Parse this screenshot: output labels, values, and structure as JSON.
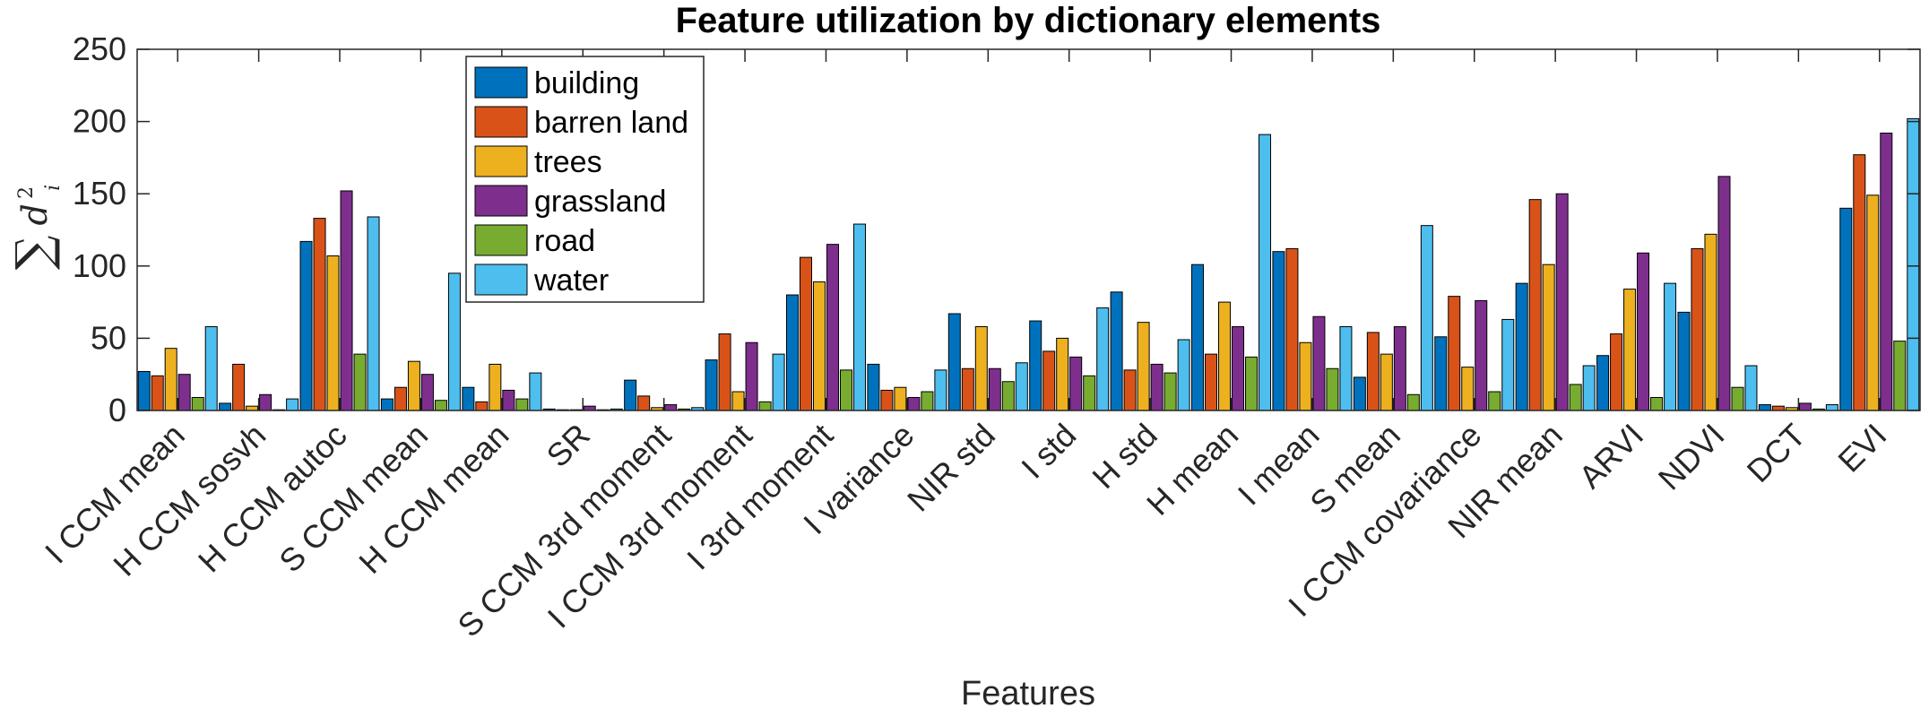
{
  "chart_data": {
    "type": "bar",
    "title": "Feature utilization by dictionary elements",
    "xlabel": "Features",
    "ylabel": {
      "sum_symbol": "∑",
      "variable": "d",
      "exponent": "2",
      "subscript": "i"
    },
    "ylim": [
      0,
      250
    ],
    "yticks": [
      0,
      50,
      100,
      150,
      200,
      250
    ],
    "grid": false,
    "legend_position": "top-left",
    "categories": [
      "I CCM mean",
      "H CCM sosvh",
      "H CCM autoc",
      "S CCM mean",
      "H CCM mean",
      "SR",
      "S CCM 3rd moment",
      "I CCM 3rd moment",
      "I 3rd moment",
      "I variance",
      "NIR std",
      "I std",
      "H std",
      "H mean",
      "I mean",
      "S mean",
      "I CCM covariance",
      "NIR mean",
      "ARVI",
      "NDVI",
      "DCT",
      "EVI"
    ],
    "series": [
      {
        "name": "building",
        "color": "#0072BD",
        "values": [
          27,
          5,
          117,
          8,
          16,
          1,
          21,
          35,
          80,
          32,
          67,
          62,
          82,
          101,
          110,
          23,
          51,
          88,
          38,
          68,
          4,
          140
        ]
      },
      {
        "name": "barren land",
        "color": "#D95319",
        "values": [
          24,
          32,
          133,
          16,
          6,
          0.5,
          10,
          53,
          106,
          14,
          29,
          41,
          28,
          39,
          112,
          54,
          79,
          146,
          53,
          112,
          3,
          177
        ]
      },
      {
        "name": "trees",
        "color": "#EDB120",
        "values": [
          43,
          3,
          107,
          34,
          32,
          0.5,
          2,
          13,
          89,
          16,
          58,
          50,
          61,
          75,
          47,
          39,
          30,
          101,
          84,
          122,
          2,
          149
        ]
      },
      {
        "name": "grassland",
        "color": "#7E2F8E",
        "values": [
          25,
          11,
          152,
          25,
          14,
          3,
          4,
          47,
          115,
          9,
          29,
          37,
          32,
          58,
          65,
          58,
          76,
          150,
          109,
          162,
          5,
          192
        ]
      },
      {
        "name": "road",
        "color": "#77AC30",
        "values": [
          9,
          0.5,
          39,
          7,
          8,
          0.5,
          1,
          6,
          28,
          13,
          20,
          24,
          26,
          37,
          29,
          11,
          13,
          18,
          9,
          16,
          1,
          48
        ]
      },
      {
        "name": "water",
        "color": "#4DBEEE",
        "values": [
          58,
          8,
          134,
          95,
          26,
          1,
          2,
          39,
          129,
          28,
          33,
          71,
          49,
          191,
          58,
          128,
          63,
          31,
          88,
          31,
          4,
          202
        ]
      }
    ]
  }
}
